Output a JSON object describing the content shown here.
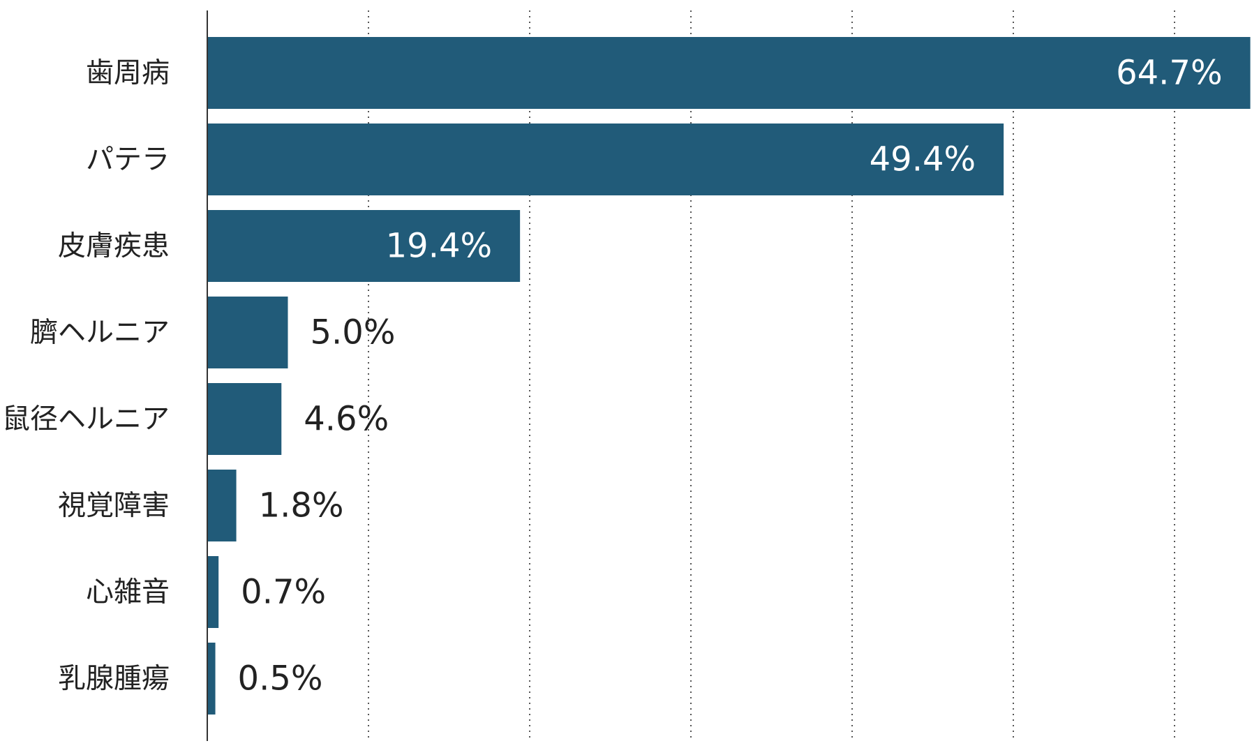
{
  "chart_data": {
    "type": "bar",
    "orientation": "horizontal",
    "title": "",
    "xlabel": "",
    "ylabel": "",
    "categories": [
      "歯周病",
      "パテラ",
      "皮膚疾患",
      "臍ヘルニア",
      "鼠径ヘルニア",
      "視覚障害",
      "心雑音",
      "乳腺腫瘍"
    ],
    "values": [
      64.7,
      49.4,
      19.4,
      5.0,
      4.6,
      1.8,
      0.7,
      0.5
    ],
    "value_labels": [
      "64.7%",
      "49.4%",
      "19.4%",
      "5.0%",
      "4.6%",
      "1.8%",
      "0.7%",
      "0.5%"
    ],
    "xlim": [
      0,
      65
    ],
    "gridlines_at": [
      10,
      20,
      30,
      40,
      50,
      60
    ],
    "grid": "vertical dotted",
    "legend": "none",
    "bar_color": "#215b79",
    "label_inside_color": "#ffffff",
    "label_outside_color": "#222222"
  }
}
